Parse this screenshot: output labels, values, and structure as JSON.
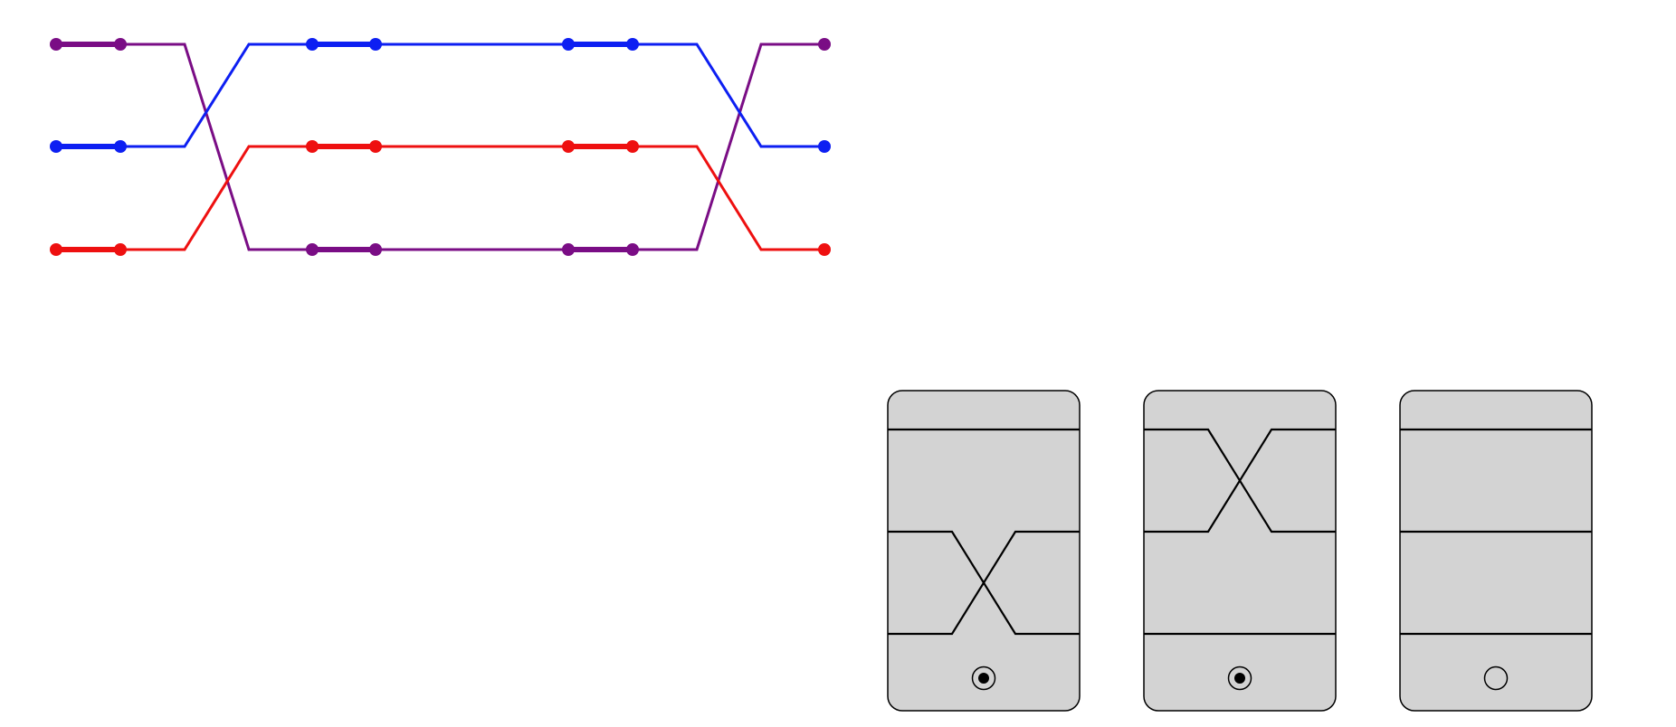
{
  "colors": {
    "purple": "#7a0d85",
    "blue": "#0d1ff2",
    "red": "#ee1010",
    "card_fill": "#d3d3d3",
    "card_stroke": "#000000"
  },
  "wire_diagram": {
    "lanes": [
      "top",
      "middle",
      "bottom"
    ],
    "strands": [
      {
        "name": "purple",
        "color_key": "purple",
        "lane_path": [
          "top",
          "bottom",
          "bottom",
          "top"
        ]
      },
      {
        "name": "blue",
        "color_key": "blue",
        "lane_path": [
          "middle",
          "top",
          "top",
          "middle"
        ]
      },
      {
        "name": "red",
        "color_key": "red",
        "lane_path": [
          "bottom",
          "middle",
          "middle",
          "bottom"
        ]
      }
    ],
    "segments": [
      "end-stub",
      "crossing",
      "straight-run",
      "crossing",
      "end-stub"
    ]
  },
  "switch_cards": [
    {
      "name": "card-1",
      "crossing_between": [
        "middle",
        "bottom"
      ],
      "indicator": "selected"
    },
    {
      "name": "card-2",
      "crossing_between": [
        "top",
        "middle"
      ],
      "indicator": "selected"
    },
    {
      "name": "card-3",
      "crossing_between": [],
      "indicator": "empty"
    }
  ]
}
